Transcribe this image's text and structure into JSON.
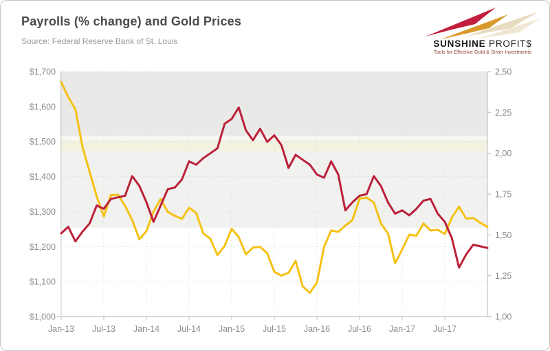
{
  "header": {
    "title": "Payrolls (% change) and Gold Prices",
    "source": "Source: Federal Reserve Bank of St. Louis",
    "logo": {
      "name_bold": "SUNSHINE ",
      "name_regular": "PROFIT$",
      "tagline": "Tools for Effective Gold & Silver Investments"
    }
  },
  "colors": {
    "logo_red": "#c11f3d",
    "logo_gold": "#d9992b",
    "logo_echo1": "#e7dcc0",
    "logo_echo2": "#efe7d3",
    "gridline": "#d9d9d9",
    "axis_line": "#c3c3c3",
    "axis_text": "#8a8a8a"
  },
  "chart_data": {
    "type": "line",
    "title": "Payrolls (% change) and Gold Prices",
    "source": "Source: Federal Reserve Bank of St. Louis",
    "legend": "none",
    "grid": "dotted",
    "months": [
      "Jan-13",
      "Feb-13",
      "Mar-13",
      "Apr-13",
      "May-13",
      "Jun-13",
      "Jul-13",
      "Aug-13",
      "Sep-13",
      "Oct-13",
      "Nov-13",
      "Dec-13",
      "Jan-14",
      "Feb-14",
      "Mar-14",
      "Apr-14",
      "May-14",
      "Jun-14",
      "Jul-14",
      "Aug-14",
      "Sep-14",
      "Oct-14",
      "Nov-14",
      "Dec-14",
      "Jan-15",
      "Feb-15",
      "Mar-15",
      "Apr-15",
      "May-15",
      "Jun-15",
      "Jul-15",
      "Aug-15",
      "Sep-15",
      "Oct-15",
      "Nov-15",
      "Dec-15",
      "Jan-16",
      "Feb-16",
      "Mar-16",
      "Apr-16",
      "May-16",
      "Jun-16",
      "Jul-16",
      "Aug-16",
      "Sep-16",
      "Oct-16",
      "Nov-16",
      "Dec-16",
      "Jan-17",
      "Feb-17",
      "Mar-17",
      "Apr-17",
      "May-17",
      "Jun-17",
      "Jul-17",
      "Aug-17",
      "Sep-17",
      "Oct-17",
      "Nov-17",
      "Dec-17",
      "Jan-18"
    ],
    "x_tick_labels": [
      "Jan-13",
      "Jul-13",
      "Jan-14",
      "Jul-14",
      "Jan-15",
      "Jul-15",
      "Jan-16",
      "Jul-16",
      "Jan-17",
      "Jul-17"
    ],
    "left_axis": {
      "min": 1000,
      "max": 1700,
      "step": 100,
      "labels": [
        "$1,700",
        "$1,600",
        "$1,500",
        "$1,400",
        "$1,300",
        "$1,200",
        "$1,100",
        "$1,000"
      ]
    },
    "right_axis": {
      "min": 1.0,
      "max": 2.5,
      "step": 0.25,
      "labels": [
        "2,50",
        "2,25",
        "2,00",
        "1,75",
        "1,50",
        "1,25",
        "1,00"
      ]
    },
    "series": [
      {
        "id": "gold-price",
        "name": "Gold Prices (USD, left axis)",
        "axis": "left",
        "color": "#F5C113",
        "values": [
          1670,
          1627,
          1592,
          1485,
          1414,
          1343,
          1286,
          1347,
          1348,
          1316,
          1276,
          1221,
          1244,
          1300,
          1336,
          1299,
          1288,
          1279,
          1311,
          1296,
          1238,
          1222,
          1176,
          1202,
          1251,
          1227,
          1178,
          1197,
          1199,
          1181,
          1128,
          1117,
          1125,
          1159,
          1086,
          1068,
          1097,
          1199,
          1246,
          1242,
          1260,
          1276,
          1337,
          1340,
          1326,
          1266,
          1238,
          1152,
          1192,
          1234,
          1231,
          1266,
          1246,
          1248,
          1236,
          1283,
          1314,
          1280,
          1282,
          1268,
          1256
        ]
      },
      {
        "id": "payrolls",
        "name": "Payrolls (% change, right axis)",
        "axis": "right",
        "color": "#BA2138",
        "values": [
          1.51,
          1.55,
          1.46,
          1.52,
          1.57,
          1.68,
          1.66,
          1.72,
          1.73,
          1.74,
          1.86,
          1.8,
          1.7,
          1.58,
          1.68,
          1.78,
          1.79,
          1.84,
          1.95,
          1.93,
          1.97,
          2.0,
          2.03,
          2.18,
          2.21,
          2.28,
          2.14,
          2.08,
          2.15,
          2.07,
          2.11,
          2.05,
          1.91,
          1.99,
          1.96,
          1.93,
          1.87,
          1.85,
          1.95,
          1.87,
          1.65,
          1.7,
          1.74,
          1.75,
          1.86,
          1.8,
          1.7,
          1.63,
          1.65,
          1.62,
          1.66,
          1.71,
          1.72,
          1.63,
          1.58,
          1.48,
          1.3,
          1.38,
          1.44,
          1.43,
          1.42
        ]
      }
    ],
    "background_bands": [
      {
        "from": 1700,
        "to": 1516,
        "color": "#e9e9e8"
      },
      {
        "from": 1516,
        "to": 1503,
        "color": "#f7f7f3"
      },
      {
        "from": 1503,
        "to": 1473,
        "color": "#f3f2e0"
      },
      {
        "from": 1473,
        "to": 1254,
        "color": "#f1f1f0"
      },
      {
        "from": 1254,
        "to": 1000,
        "color": "#ffffff"
      }
    ]
  }
}
